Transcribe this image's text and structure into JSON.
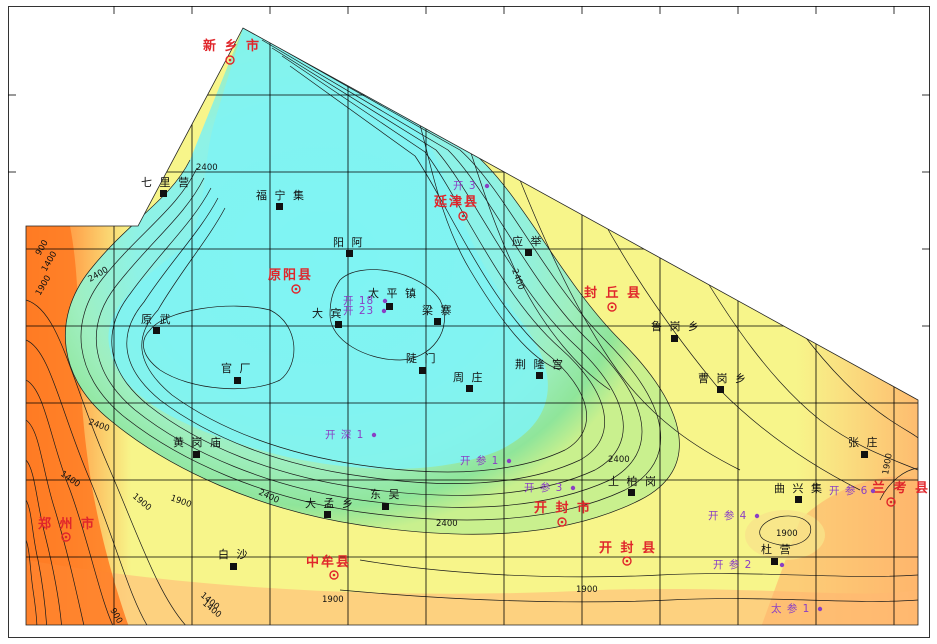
{
  "map": {
    "colors": {
      "low": "#ff6a1a",
      "mid": "#f7f58a",
      "green": "#7fe37f",
      "high": "#7ff3f3",
      "grid": "#000000",
      "city": "#e0262b",
      "well": "#8a3fc4"
    },
    "cities": [
      {
        "id": "xinxiang",
        "label": "新 乡 市"
      },
      {
        "id": "yanjin",
        "label": "延津县"
      },
      {
        "id": "yuanyang",
        "label": "原阳县"
      },
      {
        "id": "fengqiu",
        "label": "封 丘 县"
      },
      {
        "id": "zhengzhou",
        "label": "郑 州 市"
      },
      {
        "id": "zhongmou",
        "label": "中牟县"
      },
      {
        "id": "kaifeng-city",
        "label": "开 封 市"
      },
      {
        "id": "kaifeng-county",
        "label": "开 封 县"
      },
      {
        "id": "lankao",
        "label": "兰 考 县"
      }
    ],
    "towns": [
      {
        "id": "qiliying",
        "label": "七 里 营"
      },
      {
        "id": "funingji",
        "label": "福 宁 集"
      },
      {
        "id": "yanga",
        "label": "阳 阿"
      },
      {
        "id": "yingju",
        "label": "应 举"
      },
      {
        "id": "taipingzhen",
        "label": "太 平 镇"
      },
      {
        "id": "dabin",
        "label": "大 宾"
      },
      {
        "id": "liangzhai",
        "label": "梁 寨"
      },
      {
        "id": "yuanwu",
        "label": "原 武"
      },
      {
        "id": "guanchang",
        "label": "官 厂"
      },
      {
        "id": "doumen",
        "label": "陡 门"
      },
      {
        "id": "zhouzhuang",
        "label": "周 庄"
      },
      {
        "id": "jinglonggong",
        "label": "荆 隆 宫"
      },
      {
        "id": "lugangxiang",
        "label": "鲁 岗 乡"
      },
      {
        "id": "caogangxiang",
        "label": "曹 岗 乡"
      },
      {
        "id": "huanggangmiao",
        "label": "黄 岗 庙"
      },
      {
        "id": "dongwu",
        "label": "东 吴"
      },
      {
        "id": "damengxiang",
        "label": "大 孟 乡"
      },
      {
        "id": "tubaigang",
        "label": "土 柏 岗"
      },
      {
        "id": "quxingji",
        "label": "曲 兴 集"
      },
      {
        "id": "zhangzhuang",
        "label": "张 庄"
      },
      {
        "id": "baisha",
        "label": "白 沙"
      },
      {
        "id": "duying",
        "label": "杜 营"
      }
    ],
    "wells": [
      {
        "id": "kai3",
        "label": "开 3"
      },
      {
        "id": "kai18",
        "label": "开 18"
      },
      {
        "id": "kai23",
        "label": "开 23"
      },
      {
        "id": "kaishen1",
        "label": "开 深 1"
      },
      {
        "id": "kaican1",
        "label": "开 参 1"
      },
      {
        "id": "kaican3",
        "label": "开 参 3"
      },
      {
        "id": "kaican4",
        "label": "开 参 4"
      },
      {
        "id": "kaican6",
        "label": "开 参 6"
      },
      {
        "id": "kaican2",
        "label": "开 参 2"
      },
      {
        "id": "taican1",
        "label": "太 参 1"
      }
    ],
    "contour_labels": [
      {
        "id": "c1",
        "value": "2400"
      },
      {
        "id": "c2",
        "value": "2400"
      },
      {
        "id": "c3",
        "value": "1900"
      },
      {
        "id": "c4",
        "value": "1400"
      },
      {
        "id": "c5",
        "value": "1900"
      },
      {
        "id": "c6",
        "value": "2400"
      },
      {
        "id": "c7",
        "value": "2400"
      },
      {
        "id": "c8",
        "value": "1900"
      },
      {
        "id": "c9",
        "value": "1400"
      },
      {
        "id": "c10",
        "value": "2400"
      },
      {
        "id": "c11",
        "value": "2400"
      },
      {
        "id": "c12",
        "value": "1900"
      },
      {
        "id": "c13",
        "value": "1900"
      },
      {
        "id": "c14",
        "value": "1900"
      },
      {
        "id": "c15",
        "value": "900"
      },
      {
        "id": "c16",
        "value": "1400"
      },
      {
        "id": "c17",
        "value": "2400"
      },
      {
        "id": "c18",
        "value": "900"
      },
      {
        "id": "c19",
        "value": "1400"
      },
      {
        "id": "c20",
        "value": "1900"
      }
    ]
  }
}
